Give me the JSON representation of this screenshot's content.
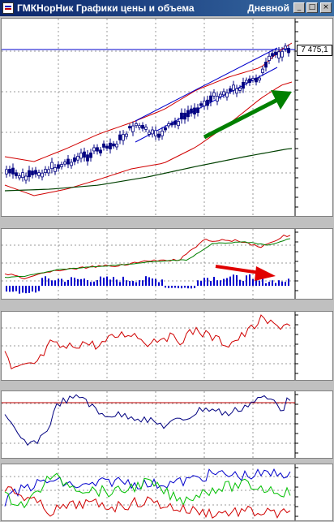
{
  "window": {
    "title": "ГМКНорНик Графики цены и объема",
    "timeframe": "Дневной",
    "minimize_glyph": "_",
    "maximize_glyph": "□",
    "close_glyph": "×"
  },
  "price_pane": {
    "last_price_label": "7 475,1",
    "colors": {
      "candle": "#000080",
      "horizontal_line": "#0000cc",
      "channel": "#0000cc",
      "bollinger": "#d00000",
      "moving_average": "#004000",
      "arrow": "#008000"
    },
    "arrow_icon": "green-trend-arrow-icon"
  },
  "macd_pane": {
    "colors": {
      "macd": "#d00000",
      "signal": "#008000",
      "histogram": "#0000cc",
      "arrow": "#e00000"
    },
    "arrow_icon": "red-divergence-arrow-icon"
  },
  "indicator_pane_3": {
    "colors": {
      "line": "#d00000"
    }
  },
  "indicator_pane_4": {
    "colors": {
      "line": "#000080",
      "level": "#c00000"
    }
  },
  "indicator_pane_5": {
    "colors": {
      "line_1": "#0000cc",
      "line_2": "#00c000",
      "line_3": "#d00000"
    }
  }
}
